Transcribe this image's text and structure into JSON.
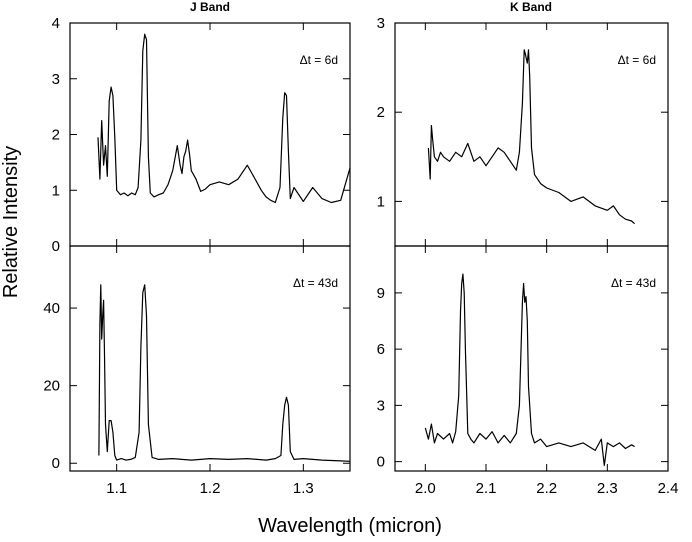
{
  "chart_data": {
    "type": "line",
    "xlabel": "Wavelength (micron)",
    "ylabel": "Relative Intensity",
    "panels": [
      {
        "id": "j6",
        "title": "J Band",
        "annotation": "Δt = 6d",
        "xlim": [
          1.05,
          1.35
        ],
        "ylim": [
          0,
          4
        ],
        "xticks": [
          1.1,
          1.2,
          1.3
        ],
        "show_xticklabels": false,
        "yticks": [
          0,
          1,
          2,
          3,
          4
        ],
        "ytick_labels": [
          "0",
          "1",
          "2",
          "3",
          "4"
        ],
        "x": [
          1.08,
          1.082,
          1.084,
          1.086,
          1.088,
          1.09,
          1.092,
          1.094,
          1.096,
          1.098,
          1.1,
          1.104,
          1.108,
          1.112,
          1.116,
          1.12,
          1.123,
          1.126,
          1.128,
          1.13,
          1.132,
          1.134,
          1.136,
          1.14,
          1.145,
          1.15,
          1.155,
          1.16,
          1.165,
          1.168,
          1.17,
          1.172,
          1.174,
          1.176,
          1.178,
          1.18,
          1.185,
          1.19,
          1.195,
          1.2,
          1.21,
          1.22,
          1.23,
          1.24,
          1.245,
          1.25,
          1.255,
          1.26,
          1.265,
          1.27,
          1.275,
          1.278,
          1.28,
          1.282,
          1.284,
          1.286,
          1.29,
          1.3,
          1.31,
          1.32,
          1.33,
          1.34,
          1.35
        ],
        "y": [
          1.95,
          1.2,
          2.25,
          1.45,
          1.8,
          1.25,
          2.6,
          2.85,
          2.7,
          1.95,
          1.0,
          0.92,
          0.95,
          0.9,
          0.95,
          0.92,
          1.05,
          1.9,
          3.5,
          3.8,
          3.7,
          1.6,
          0.95,
          0.88,
          0.92,
          0.95,
          1.1,
          1.35,
          1.8,
          1.45,
          1.3,
          1.6,
          1.7,
          1.9,
          1.65,
          1.35,
          1.2,
          0.98,
          1.02,
          1.1,
          1.15,
          1.1,
          1.2,
          1.45,
          1.3,
          1.15,
          1.0,
          0.88,
          0.82,
          0.78,
          1.05,
          2.3,
          2.75,
          2.7,
          1.7,
          0.85,
          1.05,
          0.8,
          1.05,
          0.85,
          0.78,
          0.82,
          1.4
        ]
      },
      {
        "id": "k6",
        "title": "K Band",
        "annotation": "Δt = 6d",
        "xlim": [
          1.95,
          2.4
        ],
        "ylim": [
          0.5,
          3
        ],
        "xticks": [
          2.0,
          2.1,
          2.2,
          2.3,
          2.4
        ],
        "show_xticklabels": false,
        "yticks": [
          1,
          2,
          3
        ],
        "ytick_labels": [
          "1",
          "2",
          "3"
        ],
        "x": [
          2.005,
          2.008,
          2.01,
          2.012,
          2.015,
          2.02,
          2.025,
          2.03,
          2.04,
          2.05,
          2.06,
          2.07,
          2.08,
          2.09,
          2.1,
          2.11,
          2.12,
          2.13,
          2.14,
          2.15,
          2.155,
          2.16,
          2.163,
          2.165,
          2.168,
          2.17,
          2.172,
          2.175,
          2.18,
          2.19,
          2.2,
          2.22,
          2.24,
          2.26,
          2.28,
          2.3,
          2.31,
          2.32,
          2.33,
          2.34,
          2.345
        ],
        "y": [
          1.6,
          1.25,
          1.85,
          1.7,
          1.5,
          1.45,
          1.55,
          1.5,
          1.45,
          1.55,
          1.5,
          1.65,
          1.45,
          1.5,
          1.4,
          1.5,
          1.6,
          1.55,
          1.45,
          1.35,
          1.55,
          2.1,
          2.7,
          2.65,
          2.55,
          2.7,
          2.4,
          1.6,
          1.3,
          1.2,
          1.15,
          1.1,
          1.0,
          1.05,
          0.95,
          0.9,
          0.95,
          0.85,
          0.8,
          0.78,
          0.75
        ]
      },
      {
        "id": "j43",
        "annotation": "Δt = 43d",
        "xlim": [
          1.05,
          1.35
        ],
        "ylim": [
          -2,
          56
        ],
        "xticks": [
          1.1,
          1.2,
          1.3
        ],
        "xtick_labels": [
          "1.1",
          "1.2",
          "1.3"
        ],
        "show_xticklabels": true,
        "yticks": [
          0,
          20,
          40
        ],
        "ytick_labels": [
          "0",
          "20",
          "40"
        ],
        "x": [
          1.081,
          1.082,
          1.083,
          1.084,
          1.085,
          1.086,
          1.087,
          1.088,
          1.09,
          1.092,
          1.094,
          1.096,
          1.098,
          1.1,
          1.105,
          1.11,
          1.115,
          1.12,
          1.124,
          1.126,
          1.128,
          1.13,
          1.132,
          1.134,
          1.138,
          1.145,
          1.16,
          1.18,
          1.2,
          1.22,
          1.24,
          1.26,
          1.27,
          1.276,
          1.278,
          1.28,
          1.282,
          1.284,
          1.286,
          1.29,
          1.3,
          1.32,
          1.34,
          1.35
        ],
        "y": [
          2,
          36,
          46,
          32,
          38,
          42,
          28,
          10,
          3,
          11,
          11,
          8,
          2,
          0.8,
          1.2,
          0.8,
          1.0,
          1.5,
          8,
          30,
          44,
          46,
          38,
          10,
          1.5,
          1.0,
          1.2,
          0.8,
          1.2,
          1.0,
          1.2,
          0.8,
          1.2,
          2,
          10,
          15,
          17,
          15,
          3,
          1.0,
          1.2,
          0.8,
          0.6,
          0.5
        ]
      },
      {
        "id": "k43",
        "annotation": "Δt = 43d",
        "xlim": [
          1.95,
          2.4
        ],
        "ylim": [
          -0.5,
          11.5
        ],
        "xticks": [
          2.0,
          2.1,
          2.2,
          2.3,
          2.4
        ],
        "xtick_labels": [
          "2.0",
          "2.1",
          "2.2",
          "2.3",
          "2.4"
        ],
        "show_xticklabels": true,
        "yticks": [
          0,
          3,
          6,
          9
        ],
        "ytick_labels": [
          "0",
          "3",
          "6",
          "9"
        ],
        "x": [
          2.0,
          2.005,
          2.01,
          2.015,
          2.02,
          2.03,
          2.04,
          2.045,
          2.05,
          2.055,
          2.058,
          2.06,
          2.062,
          2.064,
          2.066,
          2.07,
          2.075,
          2.08,
          2.09,
          2.1,
          2.11,
          2.12,
          2.13,
          2.14,
          2.15,
          2.155,
          2.16,
          2.162,
          2.164,
          2.166,
          2.168,
          2.17,
          2.175,
          2.18,
          2.19,
          2.2,
          2.22,
          2.24,
          2.26,
          2.28,
          2.29,
          2.295,
          2.3,
          2.31,
          2.32,
          2.33,
          2.34,
          2.345
        ],
        "y": [
          1.8,
          1.2,
          2.0,
          1.0,
          1.5,
          1.2,
          1.5,
          1.0,
          1.6,
          3.5,
          8.0,
          9.5,
          10.0,
          9.0,
          6.0,
          1.5,
          1.2,
          1.0,
          1.5,
          1.2,
          1.6,
          1.0,
          1.4,
          1.0,
          1.5,
          3.0,
          8.5,
          9.5,
          8.5,
          8.8,
          7.5,
          4.0,
          1.5,
          1.0,
          1.2,
          0.8,
          1.0,
          0.8,
          1.0,
          0.6,
          1.2,
          -0.2,
          1.0,
          0.8,
          1.0,
          0.7,
          0.9,
          0.8
        ]
      }
    ]
  }
}
